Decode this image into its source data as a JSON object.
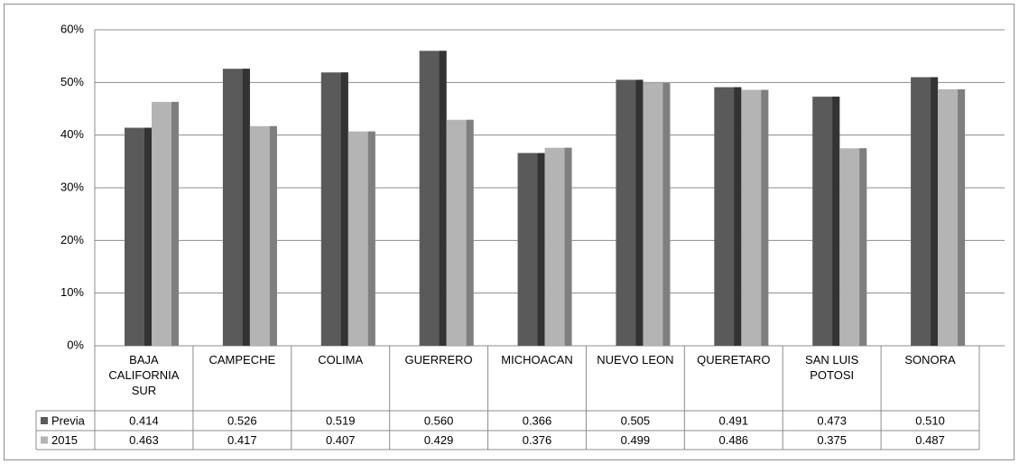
{
  "chart_data": {
    "type": "bar",
    "categories": [
      "BAJA CALIFORNIA SUR",
      "CAMPECHE",
      "COLIMA",
      "GUERRERO",
      "MICHOACAN",
      "NUEVO LEON",
      "QUERETARO",
      "SAN LUIS POTOSI",
      "SONORA"
    ],
    "series": [
      {
        "name": "Previa",
        "color": "#5a5a5a",
        "side_color": "#333333",
        "values": [
          0.414,
          0.526,
          0.519,
          0.56,
          0.366,
          0.505,
          0.491,
          0.473,
          0.51
        ],
        "value_labels": [
          "0.414",
          "0.526",
          "0.519",
          "0.560",
          "0.366",
          "0.505",
          "0.491",
          "0.473",
          "0.510"
        ]
      },
      {
        "name": "2015",
        "color": "#b4b4b4",
        "side_color": "#7f7f7f",
        "values": [
          0.463,
          0.417,
          0.407,
          0.429,
          0.376,
          0.499,
          0.486,
          0.375,
          0.487
        ],
        "value_labels": [
          "0.463",
          "0.417",
          "0.407",
          "0.429",
          "0.376",
          "0.499",
          "0.486",
          "0.375",
          "0.487"
        ]
      }
    ],
    "ylim": [
      0,
      0.6
    ],
    "yticks": [
      {
        "value": 0,
        "label": "0%"
      },
      {
        "value": 0.1,
        "label": "10%"
      },
      {
        "value": 0.2,
        "label": "20%"
      },
      {
        "value": 0.3,
        "label": "30%"
      },
      {
        "value": 0.4,
        "label": "40%"
      },
      {
        "value": 0.5,
        "label": "50%"
      },
      {
        "value": 0.6,
        "label": "60%"
      }
    ],
    "grid": true
  }
}
